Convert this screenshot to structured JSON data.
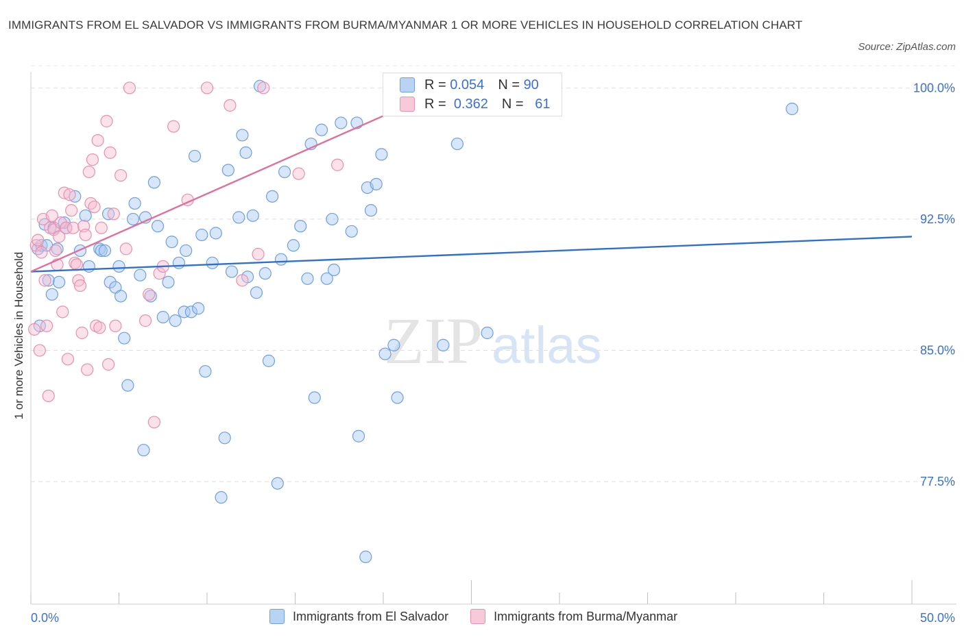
{
  "title": "IMMIGRANTS FROM EL SALVADOR VS IMMIGRANTS FROM BURMA/MYANMAR 1 OR MORE VEHICLES IN HOUSEHOLD CORRELATION CHART",
  "source": "Source: ZipAtlas.com",
  "watermark": {
    "zip": "ZIP",
    "atlas": "atlas"
  },
  "colors": {
    "blue_fill": "#a9c8f3",
    "blue_stroke": "#6f9ee3",
    "blue_line": "#2f6fce",
    "pink_fill": "#f6bcd0",
    "pink_stroke": "#ea8fae",
    "pink_line": "#e0709a",
    "axis_text": "#3a6fd8"
  },
  "legend": {
    "r_label": "R =",
    "n_label": "N =",
    "series1": {
      "r": "0.054",
      "n": "90"
    },
    "series2": {
      "r": "0.362",
      "n": "61"
    }
  },
  "chart_data": {
    "type": "scatter",
    "ylabel": "1 or more Vehicles in Household",
    "xlabel": "",
    "xlim": [
      0,
      50
    ],
    "ylim": [
      70.5,
      101.5
    ],
    "x_tick_labels": [
      "0.0%",
      "50.0%"
    ],
    "y_ticks": [
      77.5,
      85.0,
      92.5,
      100.0
    ],
    "y_tick_labels": [
      "77.5%",
      "85.0%",
      "92.5%",
      "100.0%"
    ],
    "grid": true,
    "series": [
      {
        "name": "Immigrants from El Salvador",
        "color": "blue",
        "trend": {
          "x0": 0,
          "y0": 89.5,
          "x1": 50,
          "y1": 91.5
        },
        "points": [
          [
            0.4,
            90.8
          ],
          [
            0.5,
            86.4
          ],
          [
            0.6,
            91.0
          ],
          [
            0.8,
            92.2
          ],
          [
            0.9,
            91.0
          ],
          [
            1.0,
            89.0
          ],
          [
            1.2,
            88.2
          ],
          [
            1.3,
            92.0
          ],
          [
            1.5,
            90.8
          ],
          [
            1.6,
            88.9
          ],
          [
            1.9,
            92.3
          ],
          [
            2.0,
            92.0
          ],
          [
            2.5,
            93.8
          ],
          [
            2.8,
            90.7
          ],
          [
            3.1,
            92.7
          ],
          [
            3.3,
            89.8
          ],
          [
            3.9,
            90.8
          ],
          [
            4.0,
            90.7
          ],
          [
            4.2,
            90.7
          ],
          [
            4.4,
            92.8
          ],
          [
            4.5,
            88.9
          ],
          [
            4.8,
            88.6
          ],
          [
            5.0,
            89.8
          ],
          [
            5.1,
            88.1
          ],
          [
            5.3,
            85.7
          ],
          [
            5.5,
            83.0
          ],
          [
            5.8,
            92.5
          ],
          [
            5.9,
            93.4
          ],
          [
            6.2,
            89.3
          ],
          [
            6.4,
            79.3
          ],
          [
            6.5,
            92.6
          ],
          [
            6.8,
            88.1
          ],
          [
            7.0,
            94.6
          ],
          [
            7.2,
            92.1
          ],
          [
            7.5,
            86.9
          ],
          [
            7.8,
            88.9
          ],
          [
            8.0,
            91.2
          ],
          [
            8.2,
            86.7
          ],
          [
            8.4,
            90.0
          ],
          [
            8.7,
            87.2
          ],
          [
            8.8,
            90.7
          ],
          [
            9.1,
            87.2
          ],
          [
            9.3,
            96.1
          ],
          [
            9.5,
            87.4
          ],
          [
            9.7,
            91.6
          ],
          [
            9.9,
            83.8
          ],
          [
            10.3,
            90.0
          ],
          [
            10.5,
            91.7
          ],
          [
            10.8,
            76.6
          ],
          [
            11.0,
            80.0
          ],
          [
            11.2,
            95.3
          ],
          [
            11.4,
            89.5
          ],
          [
            11.8,
            92.6
          ],
          [
            12.0,
            97.3
          ],
          [
            12.2,
            96.3
          ],
          [
            12.3,
            89.2
          ],
          [
            12.6,
            92.7
          ],
          [
            12.8,
            88.3
          ],
          [
            13.0,
            100.1
          ],
          [
            13.3,
            89.4
          ],
          [
            13.5,
            84.4
          ],
          [
            13.7,
            93.8
          ],
          [
            14.0,
            77.4
          ],
          [
            14.2,
            90.2
          ],
          [
            14.4,
            95.2
          ],
          [
            14.9,
            91.0
          ],
          [
            15.3,
            92.1
          ],
          [
            15.7,
            89.1
          ],
          [
            15.9,
            96.8
          ],
          [
            16.1,
            82.3
          ],
          [
            16.5,
            97.6
          ],
          [
            16.8,
            89.1
          ],
          [
            17.1,
            92.5
          ],
          [
            17.2,
            89.6
          ],
          [
            17.6,
            98.0
          ],
          [
            18.2,
            91.8
          ],
          [
            18.5,
            98.0
          ],
          [
            18.6,
            80.1
          ],
          [
            19.0,
            73.2
          ],
          [
            19.1,
            94.3
          ],
          [
            19.3,
            93.0
          ],
          [
            19.6,
            94.5
          ],
          [
            19.9,
            96.2
          ],
          [
            20.1,
            84.8
          ],
          [
            20.6,
            85.3
          ],
          [
            20.8,
            82.3
          ],
          [
            23.4,
            85.3
          ],
          [
            24.2,
            96.8
          ],
          [
            25.9,
            86.0
          ],
          [
            43.2,
            98.8
          ]
        ]
      },
      {
        "name": "Immigrants from Burma/Myanmar",
        "color": "pink",
        "trend": {
          "x0": 0,
          "y0": 89.5,
          "x1": 20,
          "y1": 98.4
        },
        "points": [
          [
            0.2,
            86.2
          ],
          [
            0.3,
            91.0
          ],
          [
            0.4,
            91.3
          ],
          [
            0.5,
            85.0
          ],
          [
            0.6,
            90.6
          ],
          [
            0.7,
            92.5
          ],
          [
            0.8,
            89.0
          ],
          [
            0.9,
            86.4
          ],
          [
            1.0,
            82.4
          ],
          [
            1.1,
            92.0
          ],
          [
            1.2,
            92.7
          ],
          [
            1.3,
            91.9
          ],
          [
            1.4,
            90.7
          ],
          [
            1.5,
            89.9
          ],
          [
            1.6,
            91.5
          ],
          [
            1.7,
            92.3
          ],
          [
            1.8,
            87.2
          ],
          [
            1.9,
            94.0
          ],
          [
            2.0,
            92.0
          ],
          [
            2.1,
            84.5
          ],
          [
            2.2,
            93.9
          ],
          [
            2.3,
            93.0
          ],
          [
            2.4,
            92.0
          ],
          [
            2.5,
            90.0
          ],
          [
            2.6,
            89.9
          ],
          [
            2.7,
            89.0
          ],
          [
            2.8,
            88.7
          ],
          [
            2.9,
            86.0
          ],
          [
            3.0,
            92.1
          ],
          [
            3.1,
            91.6
          ],
          [
            3.2,
            83.9
          ],
          [
            3.3,
            95.2
          ],
          [
            3.4,
            93.4
          ],
          [
            3.5,
            95.9
          ],
          [
            3.6,
            93.2
          ],
          [
            3.7,
            86.4
          ],
          [
            3.8,
            97.0
          ],
          [
            3.9,
            86.3
          ],
          [
            4.0,
            92.0
          ],
          [
            4.3,
            98.1
          ],
          [
            4.4,
            84.2
          ],
          [
            4.5,
            96.3
          ],
          [
            4.7,
            92.8
          ],
          [
            4.8,
            86.4
          ],
          [
            5.1,
            95.0
          ],
          [
            5.4,
            90.8
          ],
          [
            5.6,
            100.0
          ],
          [
            6.5,
            86.7
          ],
          [
            6.7,
            88.2
          ],
          [
            7.0,
            80.9
          ],
          [
            7.3,
            89.4
          ],
          [
            7.5,
            89.8
          ],
          [
            8.1,
            97.8
          ],
          [
            8.9,
            93.6
          ],
          [
            10.0,
            100.0
          ],
          [
            11.3,
            99.0
          ],
          [
            12.0,
            89.0
          ],
          [
            12.9,
            90.5
          ],
          [
            13.2,
            100.0
          ],
          [
            15.2,
            95.1
          ],
          [
            17.4,
            95.6
          ]
        ]
      }
    ]
  }
}
